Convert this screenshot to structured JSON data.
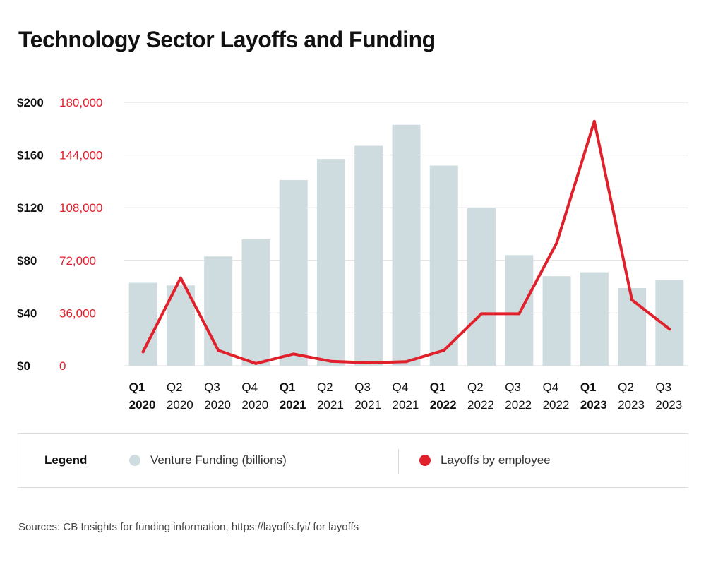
{
  "title": "Technology Sector Layoffs and Funding",
  "source": "Sources: CB Insights for funding information, https://layoffs.fyi/ for layoffs",
  "colors": {
    "funding": "#cfdcdf",
    "layoffs": "#e0202a",
    "grid": "#dcdcdc",
    "axis_right_text": "#e0202a",
    "axis_left_text": "#111111"
  },
  "legend": {
    "title": "Legend",
    "items": [
      {
        "label": "Venture Funding (billions)",
        "color": "#cfdcdf"
      },
      {
        "label": "Layoffs by employee",
        "color": "#e0202a"
      }
    ]
  },
  "chart_data": {
    "type": "bar",
    "title": "Technology Sector Layoffs and Funding",
    "categories": [
      {
        "q": "Q1",
        "year": "2020",
        "bold": true
      },
      {
        "q": "Q2",
        "year": "2020",
        "bold": false
      },
      {
        "q": "Q3",
        "year": "2020",
        "bold": false
      },
      {
        "q": "Q4",
        "year": "2020",
        "bold": false
      },
      {
        "q": "Q1",
        "year": "2021",
        "bold": true
      },
      {
        "q": "Q2",
        "year": "2021",
        "bold": false
      },
      {
        "q": "Q3",
        "year": "2021",
        "bold": false
      },
      {
        "q": "Q4",
        "year": "2021",
        "bold": false
      },
      {
        "q": "Q1",
        "year": "2022",
        "bold": true
      },
      {
        "q": "Q2",
        "year": "2022",
        "bold": false
      },
      {
        "q": "Q3",
        "year": "2022",
        "bold": false
      },
      {
        "q": "Q4",
        "year": "2022",
        "bold": false
      },
      {
        "q": "Q1",
        "year": "2023",
        "bold": true
      },
      {
        "q": "Q2",
        "year": "2023",
        "bold": false
      },
      {
        "q": "Q3",
        "year": "2023",
        "bold": false
      }
    ],
    "series": [
      {
        "name": "Venture Funding (billions)",
        "type": "bar",
        "axis": "left",
        "values": [
          63,
          61,
          83,
          96,
          141,
          157,
          167,
          183,
          152,
          120,
          84,
          68,
          71,
          59,
          65
        ]
      },
      {
        "name": "Layoffs by employee",
        "type": "line",
        "axis": "right",
        "values": [
          9500,
          60000,
          10500,
          1500,
          8000,
          3000,
          2000,
          2800,
          10500,
          35500,
          35500,
          84000,
          167000,
          45000,
          25000
        ]
      }
    ],
    "y_left": {
      "min": 0,
      "max": 200,
      "ticks": [
        0,
        40,
        80,
        120,
        160,
        200
      ],
      "tick_labels": [
        "$0",
        "$40",
        "$80",
        "$120",
        "$160",
        "$200"
      ]
    },
    "y_right": {
      "min": 0,
      "max": 180000,
      "ticks": [
        0,
        36000,
        72000,
        108000,
        144000,
        180000
      ],
      "tick_labels": [
        "0",
        "36,000",
        "72,000",
        "108,000",
        "144,000",
        "180,000"
      ]
    },
    "grid": true,
    "legend_position": "bottom"
  }
}
